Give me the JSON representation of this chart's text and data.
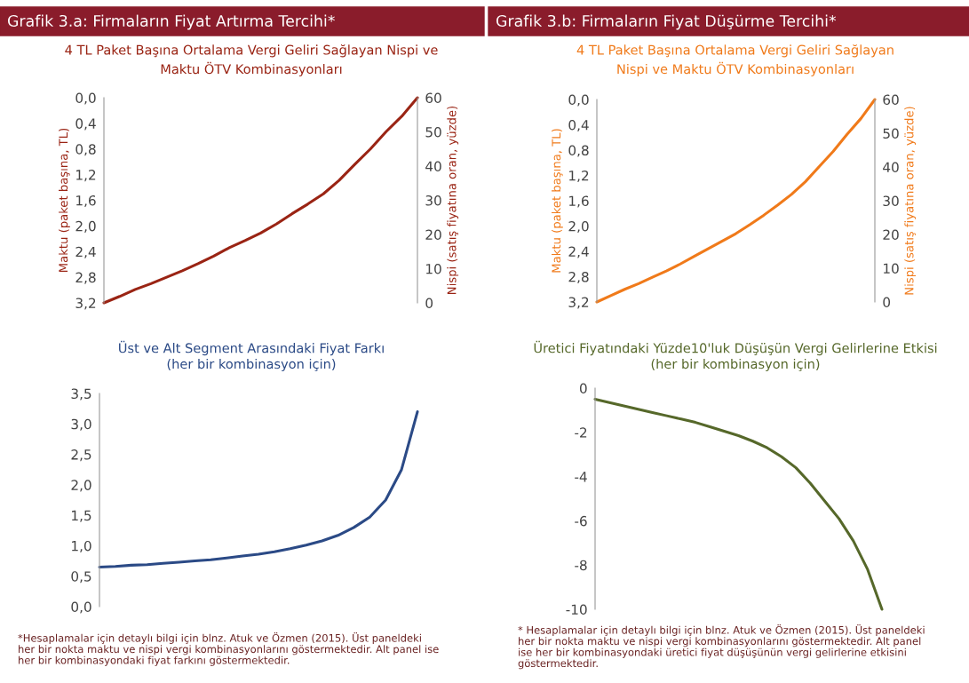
{
  "chart_data": [
    {
      "type": "line",
      "title": "Grafik 3.a: Firmaların Fiyat Artırma Tercihi*",
      "subtitle": "4 TL Paket Başına Ortalama Vergi Geliri Sağlayan Nispi ve\nMaktu ÖTV Kombinasyonları",
      "ylabel": "Maktu (paket başına, TL)",
      "y2label": "Nispi (satış fiyatına oran, yüzde)",
      "categories": [
        null,
        null,
        null,
        null,
        null,
        null,
        null,
        null,
        null,
        null,
        null,
        null,
        null,
        null,
        null,
        null,
        null,
        null,
        null,
        null,
        null
      ],
      "series": [
        {
          "color": "#9a2414",
          "values": [
            3.2,
            3.1,
            2.99,
            2.9,
            2.8,
            2.7,
            2.59,
            2.47,
            2.34,
            2.23,
            2.11,
            1.97,
            1.81,
            1.66,
            1.5,
            1.29,
            1.04,
            0.8,
            0.53,
            0.29,
            0.0
          ]
        }
      ],
      "ylim": [
        3.2,
        0.0
      ],
      "yticks": [
        {
          "value": 0,
          "label": "0,0"
        },
        {
          "value": 0.4,
          "label": "0,4"
        },
        {
          "value": 0.8,
          "label": "0,8"
        },
        {
          "value": 1.2,
          "label": "1,2"
        },
        {
          "value": 1.6,
          "label": "1,6"
        },
        {
          "value": 2.0,
          "label": "2,0"
        },
        {
          "value": 2.4,
          "label": "2,4"
        },
        {
          "value": 2.8,
          "label": "2,8"
        },
        {
          "value": 3.2,
          "label": "3,2"
        }
      ],
      "y2lim": [
        0,
        60
      ],
      "y2ticks": [
        0,
        10,
        20,
        30,
        40,
        50,
        60
      ],
      "tick_labels": "y"
    },
    {
      "type": "line",
      "title": "Grafik 3.b: Firmaların Fiyat Düşürme Tercihi*",
      "subtitle": "4 TL Paket Başına Ortalama Vergi Geliri Sağlayan\nNispi ve Maktu ÖTV Kombinasyonları",
      "ylabel": "Maktu (paket başına, TL)",
      "y2label": "Nispi (satış fiyatına oran, yüzde)",
      "categories": [
        null,
        null,
        null,
        null,
        null,
        null,
        null,
        null,
        null,
        null,
        null,
        null,
        null,
        null,
        null,
        null,
        null,
        null,
        null,
        null,
        null
      ],
      "series": [
        {
          "color": "#f07a1a",
          "values": [
            3.2,
            3.1,
            3.0,
            2.91,
            2.81,
            2.71,
            2.6,
            2.48,
            2.36,
            2.24,
            2.12,
            1.98,
            1.83,
            1.67,
            1.5,
            1.3,
            1.06,
            0.82,
            0.55,
            0.3,
            0.0
          ]
        }
      ],
      "ylim": [
        3.2,
        0.0
      ],
      "yticks": [
        {
          "value": 0,
          "label": "0,0"
        },
        {
          "value": 0.4,
          "label": "0,4"
        },
        {
          "value": 0.8,
          "label": "0,8"
        },
        {
          "value": 1.2,
          "label": "1,2"
        },
        {
          "value": 1.6,
          "label": "1,6"
        },
        {
          "value": 2.0,
          "label": "2,0"
        },
        {
          "value": 2.4,
          "label": "2,4"
        },
        {
          "value": 2.8,
          "label": "2,8"
        },
        {
          "value": 3.2,
          "label": "3,2"
        }
      ],
      "y2lim": [
        0,
        60
      ],
      "y2ticks": [
        0,
        10,
        20,
        30,
        40,
        50,
        60
      ],
      "tick_labels": "y"
    },
    {
      "type": "line",
      "title": "Üst ve Alt Segment Arasındaki Fiyat Farkı",
      "subtitle": "(her bir kombinasyon için)",
      "categories": [
        null,
        null,
        null,
        null,
        null,
        null,
        null,
        null,
        null,
        null,
        null,
        null,
        null,
        null,
        null,
        null,
        null,
        null,
        null,
        null,
        null
      ],
      "series": [
        {
          "color": "#2b4a86",
          "values": [
            0.65,
            0.66,
            0.68,
            0.69,
            0.71,
            0.73,
            0.75,
            0.77,
            0.8,
            0.83,
            0.86,
            0.9,
            0.95,
            1.01,
            1.08,
            1.17,
            1.3,
            1.47,
            1.75,
            2.25,
            3.2
          ]
        }
      ],
      "ylim": [
        0,
        3.5
      ],
      "yticks": [
        {
          "value": 0,
          "label": "0,0"
        },
        {
          "value": 0.5,
          "label": "0,5"
        },
        {
          "value": 1.0,
          "label": "1,0"
        },
        {
          "value": 1.5,
          "label": "1,5"
        },
        {
          "value": 2.0,
          "label": "2,0"
        },
        {
          "value": 2.5,
          "label": "2,5"
        },
        {
          "value": 3.0,
          "label": "3,0"
        },
        {
          "value": 3.5,
          "label": "3,5"
        }
      ],
      "tick_labels": "y",
      "annotations": [
        "*Hesaplamalar için detaylı bilgi için blnz. Atuk ve Özmen (2015). Üst paneldeki\nher bir nokta maktu ve nispi vergi kombinasyonlarını göstermektedir. Alt panel ise\nher bir kombinasyondaki fiyat farkını göstermektedir."
      ]
    },
    {
      "type": "line",
      "title": "Üretici Fiyatındaki Yüzde10'luk Düşüşün Vergi Gelirlerine Etkisi",
      "subtitle": "(her bir kombinasyon için)",
      "categories": [
        null,
        null,
        null,
        null,
        null,
        null,
        null,
        null,
        null,
        null,
        null,
        null,
        null,
        null,
        null,
        null,
        null,
        null,
        null,
        null,
        null
      ],
      "series": [
        {
          "color": "#56682a",
          "values": [
            -0.5,
            -0.65,
            -0.8,
            -0.95,
            -1.1,
            -1.25,
            -1.4,
            -1.55,
            -1.75,
            -1.95,
            -2.15,
            -2.4,
            -2.7,
            -3.1,
            -3.6,
            -4.3,
            -5.1,
            -5.9,
            -6.9,
            -8.2,
            -10
          ]
        }
      ],
      "ylim": [
        -10,
        0
      ],
      "yticks": [
        -10,
        -8,
        -6,
        -4,
        -2,
        0
      ],
      "tick_labels": "y",
      "annotations": [
        "* Hesaplamalar için detaylı bilgi için blnz. Atuk ve Özmen (2015). Üst paneldeki\nher bir nokta maktu ve nispi vergi kombinasyonlarını göstermektedir. Alt panel\nise her bir kombinasyondaki üretici fiyat düşüşünün vergi gelirlerine etkisini\ngöstermektedir."
      ]
    }
  ]
}
